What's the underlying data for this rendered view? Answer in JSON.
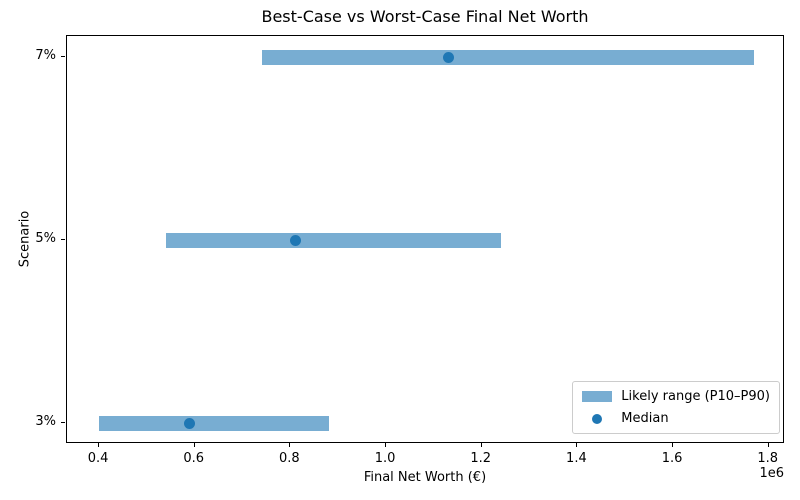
{
  "chart_data": {
    "type": "bar",
    "subtype": "horizontal-range-with-median-dot",
    "title": "Best-Case vs Worst-Case Final Net Worth",
    "xlabel": "Final Net Worth (€)",
    "ylabel": "Scenario",
    "x_offset_label": "1e6",
    "xlim": [
      333000,
      1834000
    ],
    "grid": false,
    "categories": [
      "7%",
      "5%",
      "3%"
    ],
    "rows": [
      {
        "label": "7%",
        "p10": 740000,
        "median": 1130000,
        "p90": 1770000
      },
      {
        "label": "5%",
        "p10": 540000,
        "median": 810000,
        "p90": 1240000
      },
      {
        "label": "3%",
        "p10": 400000,
        "median": 590000,
        "p90": 880000
      }
    ],
    "x_ticks": {
      "values": [
        400000,
        600000,
        800000,
        1000000,
        1200000,
        1400000,
        1600000,
        1800000
      ],
      "labels": [
        "0.4",
        "0.6",
        "0.8",
        "1.0",
        "1.2",
        "1.4",
        "1.6",
        "1.8"
      ]
    },
    "legend": {
      "position": "lower right",
      "entries": [
        "Likely range (P10–P90)",
        "Median"
      ]
    },
    "colors": {
      "range_bar": "#78add2",
      "median_dot": "#1f77b4",
      "spine": "#000000",
      "legend_border": "#cccccc",
      "background": "#ffffff"
    }
  }
}
